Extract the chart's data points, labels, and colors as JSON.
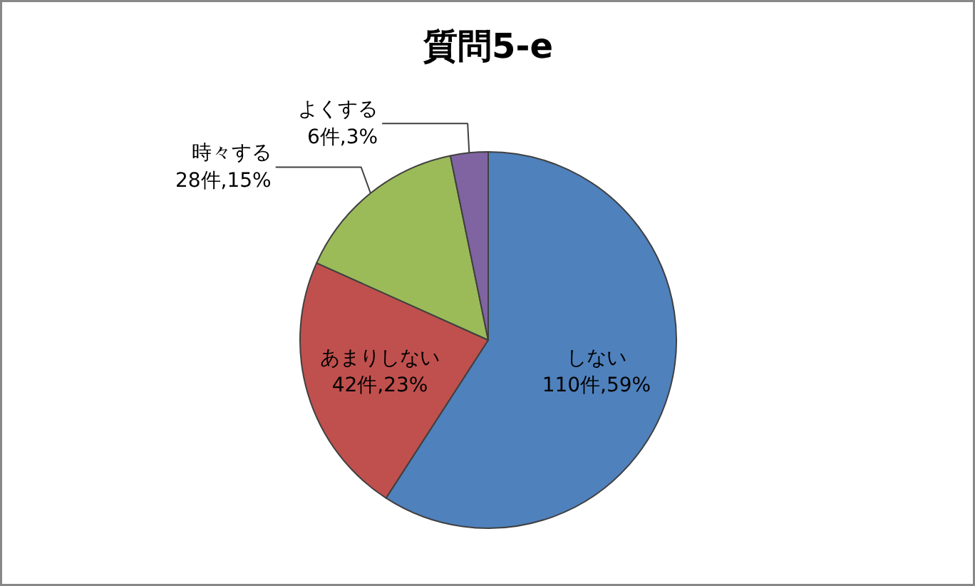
{
  "chart_data": {
    "type": "pie",
    "title": "質問5-e",
    "categories": [
      "しない",
      "あまりしない",
      "時々する",
      "よくする"
    ],
    "values": [
      110,
      42,
      28,
      6
    ],
    "value_labels": [
      "110件,59%",
      "42件,23%",
      "28件,15%",
      "6件,3%"
    ],
    "colors": [
      "#4f81bd",
      "#c0504d",
      "#9bbb59",
      "#8064a2"
    ]
  }
}
